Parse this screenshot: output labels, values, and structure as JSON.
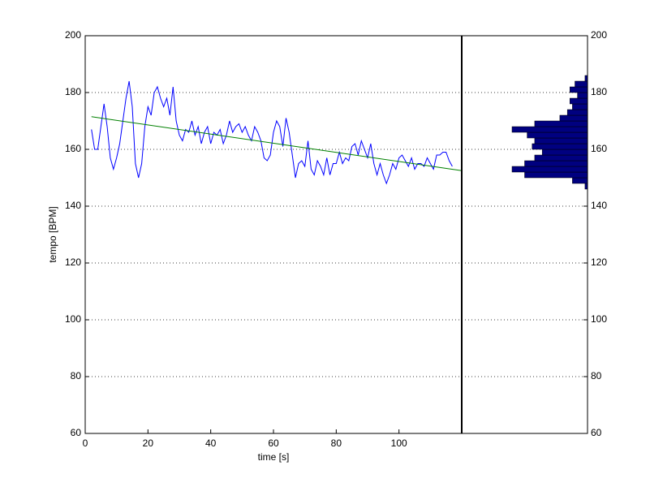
{
  "chart_data": [
    {
      "type": "line",
      "x_label": "time [s]",
      "y_label": "tempo [BPM]",
      "xlim": [
        0,
        120
      ],
      "xticks": [
        0,
        20,
        40,
        60,
        80,
        100
      ],
      "ylim": [
        60,
        200
      ],
      "yticks": [
        60,
        80,
        100,
        120,
        140,
        160,
        180,
        200
      ],
      "grid": "y",
      "series": [
        {
          "color": "#0000ff",
          "x": [
            2,
            3,
            4,
            5,
            6,
            7,
            8,
            9,
            10,
            11,
            12,
            13,
            14,
            15,
            16,
            17,
            18,
            19,
            20,
            21,
            22,
            23,
            24,
            25,
            26,
            27,
            28,
            29,
            30,
            31,
            32,
            33,
            34,
            35,
            36,
            37,
            38,
            39,
            40,
            41,
            42,
            43,
            44,
            45,
            46,
            47,
            48,
            49,
            50,
            51,
            52,
            53,
            54,
            55,
            56,
            57,
            58,
            59,
            60,
            61,
            62,
            63,
            64,
            65,
            66,
            67,
            68,
            69,
            70,
            71,
            72,
            73,
            74,
            75,
            76,
            77,
            78,
            79,
            80,
            81,
            82,
            83,
            84,
            85,
            86,
            87,
            88,
            89,
            90,
            91,
            92,
            93,
            94,
            95,
            96,
            97,
            98,
            99,
            100,
            101,
            102,
            103,
            104,
            105,
            106,
            107,
            108,
            109,
            110,
            111,
            112,
            113,
            114,
            115,
            116,
            117
          ],
          "values": [
            167,
            160,
            160,
            168,
            176,
            168,
            157,
            153,
            157,
            162,
            170,
            178,
            184,
            175,
            155,
            150,
            155,
            168,
            175,
            172,
            180,
            182,
            178,
            175,
            178,
            172,
            182,
            170,
            165,
            163,
            167,
            166,
            170,
            165,
            168,
            162,
            166,
            168,
            162,
            166,
            165,
            167,
            162,
            165,
            170,
            166,
            168,
            169,
            166,
            168,
            165,
            163,
            168,
            166,
            163,
            157,
            156,
            158,
            166,
            170,
            168,
            161,
            171,
            166,
            158,
            150,
            155,
            156,
            154,
            163,
            153,
            151,
            156,
            154,
            151,
            157,
            151,
            155,
            155,
            159,
            155,
            157,
            156,
            161,
            162,
            158,
            163,
            160,
            157,
            162,
            155,
            151,
            155,
            151,
            148,
            151,
            155,
            153,
            157,
            158,
            156,
            154,
            157,
            153,
            155,
            155,
            154,
            157,
            155,
            153,
            158,
            158,
            159,
            159,
            156,
            154
          ]
        },
        {
          "color": "#008000",
          "x": [
            2,
            120
          ],
          "values": [
            171.5,
            152.5
          ]
        }
      ]
    },
    {
      "type": "hist",
      "orientation": "horizontal",
      "color": "#000080",
      "xlim": [
        0,
        50
      ],
      "ylim": [
        60,
        200
      ],
      "yticks": [
        60,
        80,
        100,
        120,
        140,
        160,
        180,
        200
      ],
      "grid": "y",
      "bins": [
        146,
        148,
        150,
        152,
        154,
        156,
        158,
        160,
        162,
        164,
        166,
        168,
        170,
        172,
        174,
        176,
        178,
        180,
        182,
        184,
        186
      ],
      "counts": [
        1,
        6,
        25,
        30,
        25,
        21,
        18,
        22,
        21,
        24,
        30,
        21,
        11,
        8,
        6,
        7,
        4,
        7,
        5,
        1
      ]
    }
  ]
}
